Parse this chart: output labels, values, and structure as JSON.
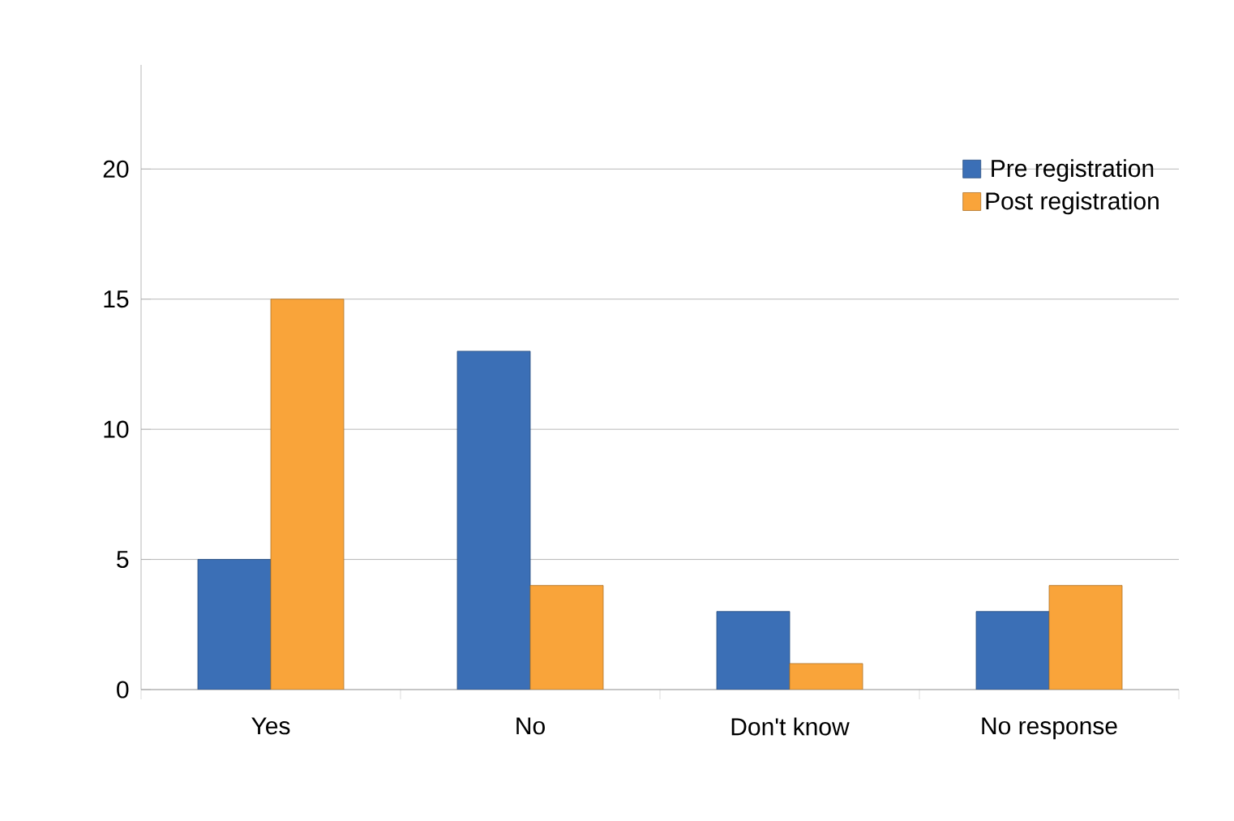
{
  "chart_data": {
    "type": "bar",
    "categories": [
      "Yes",
      "No",
      "Don't know",
      "No response"
    ],
    "series": [
      {
        "name": "Pre registration",
        "color": "#3b6fb6",
        "values": [
          5,
          13,
          3,
          3
        ]
      },
      {
        "name": "Post registration",
        "color": "#f9a43a",
        "values": [
          15,
          4,
          1,
          4
        ]
      }
    ],
    "ylim": [
      0,
      24
    ],
    "yticks": [
      0,
      5,
      10,
      15,
      20
    ],
    "grid": "y",
    "legend": "top right"
  }
}
